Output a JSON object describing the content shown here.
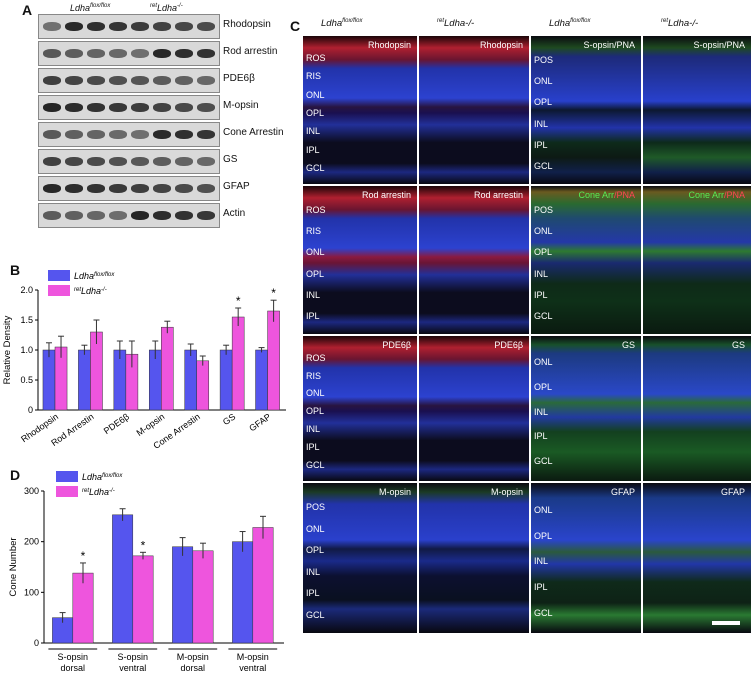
{
  "panels": {
    "A": "A",
    "B": "B",
    "C": "C",
    "D": "D"
  },
  "blot": {
    "group1": {
      "name": "Ldha",
      "sup": "flox/flox"
    },
    "group2": {
      "pre": "ret",
      "name": "Ldha",
      "sup": "-/-"
    },
    "rows": [
      "Rhodopsin",
      "Rod arrestin",
      "PDE6β",
      "M-opsin",
      "Cone Arrestin",
      "GS",
      "GFAP",
      "Actin"
    ]
  },
  "chart_data": [
    {
      "type": "bar",
      "panel": "B",
      "ylabel": "Relative Density",
      "ylim": [
        0,
        2.0
      ],
      "yticks": [
        "0",
        "0.5",
        "1.0",
        "1.5",
        "2.0"
      ],
      "categories": [
        "Rhodopsin",
        "Rod Arrestin",
        "PDE6β",
        "M-opsin",
        "Cone Arrestin",
        "GS",
        "GFAP"
      ],
      "series": [
        {
          "name": "Ldha flox/flox",
          "color": "#5555ee",
          "values": [
            1.0,
            1.0,
            1.0,
            1.0,
            1.0,
            1.0,
            1.0
          ],
          "err": [
            0.12,
            0.08,
            0.15,
            0.15,
            0.1,
            0.08,
            0.04
          ]
        },
        {
          "name": "ret Ldha -/-",
          "color": "#ee55dd",
          "values": [
            1.05,
            1.3,
            0.93,
            1.38,
            0.82,
            1.55,
            1.65
          ],
          "err": [
            0.18,
            0.2,
            0.22,
            0.1,
            0.08,
            0.15,
            0.18
          ]
        }
      ],
      "significance": [
        "",
        "",
        "",
        "",
        "",
        "*",
        "*"
      ],
      "legend": [
        {
          "name": "Ldha",
          "sup": "flox/flox"
        },
        {
          "pre": "ret",
          "name": "Ldha",
          "sup": "-/-"
        }
      ]
    },
    {
      "type": "bar",
      "panel": "D",
      "ylabel": "Cone Number",
      "ylim": [
        0,
        300
      ],
      "yticks": [
        "0",
        "100",
        "200",
        "300"
      ],
      "categories": [
        "S-opsin dorsal",
        "S-opsin ventral",
        "M-opsin dorsal",
        "M-opsin ventral"
      ],
      "category_lines": [
        [
          "S-opsin",
          "dorsal"
        ],
        [
          "S-opsin",
          "ventral"
        ],
        [
          "M-opsin",
          "dorsal"
        ],
        [
          "M-opsin",
          "ventral"
        ]
      ],
      "series": [
        {
          "name": "Ldha flox/flox",
          "color": "#5555ee",
          "values": [
            50,
            253,
            190,
            200
          ],
          "err": [
            10,
            12,
            18,
            20
          ]
        },
        {
          "name": "ret Ldha -/-",
          "color": "#ee55dd",
          "values": [
            138,
            172,
            182,
            228
          ],
          "err": [
            20,
            7,
            15,
            22
          ]
        }
      ],
      "significance": [
        "*",
        "*",
        "",
        ""
      ],
      "legend": [
        {
          "name": "Ldha",
          "sup": "flox/flox"
        },
        {
          "pre": "ret",
          "name": "Ldha",
          "sup": "-/-"
        }
      ]
    }
  ],
  "micrographs": {
    "headers": [
      {
        "name": "Ldha",
        "sup": "flox/flox"
      },
      {
        "pre": "ret",
        "name": "Ldha-/-"
      },
      {
        "name": "Ldha",
        "sup": "flox/flox"
      },
      {
        "pre": "ret",
        "name": "Ldha-/-"
      }
    ],
    "rows": [
      {
        "left_title": "Rhodopsin",
        "right_title": "S-opsin/PNA",
        "left_layers": [
          "ROS",
          "RIS",
          "ONL",
          "OPL",
          "INL",
          "IPL",
          "GCL"
        ],
        "right_layers": [
          "POS",
          "ONL",
          "OPL",
          "INL",
          "IPL",
          "GCL"
        ]
      },
      {
        "left_title": "Rod arrestin",
        "right_title_a": "Cone Arr",
        "right_title_b": "/PNA",
        "left_layers": [
          "ROS",
          "RIS",
          "ONL",
          "OPL",
          "INL",
          "IPL"
        ],
        "right_layers": [
          "POS",
          "ONL",
          "OPL",
          "INL",
          "IPL",
          "GCL"
        ]
      },
      {
        "left_title": "PDE6β",
        "right_title": "GS",
        "left_layers": [
          "ROS",
          "RIS",
          "ONL",
          "OPL",
          "INL",
          "IPL",
          "GCL"
        ],
        "right_layers": [
          "ONL",
          "OPL",
          "INL",
          "IPL",
          "GCL"
        ]
      },
      {
        "left_title": "M-opsin",
        "right_title": "GFAP",
        "left_layers": [
          "POS",
          "ONL",
          "OPL",
          "INL",
          "IPL",
          "GCL"
        ],
        "right_layers": [
          "ONL",
          "OPL",
          "INL",
          "IPL",
          "GCL"
        ]
      }
    ]
  }
}
